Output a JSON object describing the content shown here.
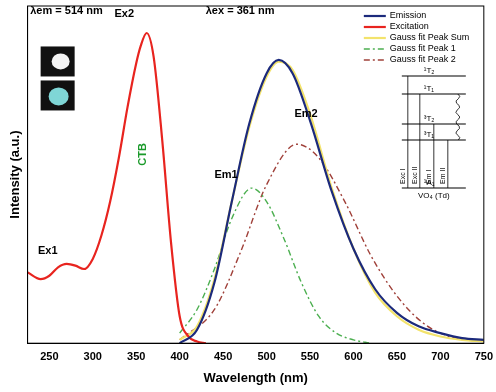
{
  "chart_data": {
    "type": "line",
    "x_label": "Wavelength (nm)",
    "y_label": "Intensity (a.u.)",
    "xlim": [
      225,
      750
    ],
    "xticks": [
      250,
      300,
      350,
      400,
      450,
      500,
      550,
      600,
      650,
      700,
      750
    ],
    "ylim": [
      0,
      1
    ],
    "tick_labels": "x",
    "grid": false,
    "legend": "upper right",
    "annotations": [
      "λem = 514 nm",
      "λex = 361 nm",
      "Ex1",
      "Ex2",
      "CTB",
      "Em1",
      "Em2"
    ],
    "inset": {
      "levels": [
        "¹T₂",
        "¹T₁",
        "³T₂",
        "³T₁",
        "¹A₁"
      ],
      "transitions": [
        "Exc I",
        "Exc II",
        "Em I",
        "Em II"
      ],
      "caption": "VO₄ (Td)"
    },
    "series": [
      {
        "name": "Emission",
        "color": "#1c2a7c",
        "line_style": "solid",
        "x": [
          400,
          420,
          440,
          460,
          480,
          500,
          514,
          530,
          550,
          575,
          600,
          625,
          650,
          675,
          700,
          725,
          750
        ],
        "values": [
          0.0,
          0.04,
          0.18,
          0.42,
          0.65,
          0.8,
          0.84,
          0.8,
          0.66,
          0.45,
          0.28,
          0.16,
          0.09,
          0.05,
          0.03,
          0.015,
          0.01
        ]
      },
      {
        "name": "Excitation",
        "color": "#e8241f",
        "line_style": "solid",
        "x": [
          225,
          240,
          250,
          260,
          270,
          280,
          290,
          300,
          310,
          320,
          330,
          340,
          350,
          355,
          362,
          370,
          380,
          390,
          400,
          410,
          420,
          430
        ],
        "values": [
          0.21,
          0.19,
          0.2,
          0.225,
          0.235,
          0.23,
          0.22,
          0.25,
          0.32,
          0.42,
          0.55,
          0.7,
          0.83,
          0.88,
          0.92,
          0.85,
          0.6,
          0.3,
          0.08,
          0.02,
          0.005,
          0
        ]
      },
      {
        "name": "Gauss fit Peak Sum",
        "color": "#f3e36c",
        "line_style": "solid",
        "x": [
          400,
          420,
          440,
          460,
          480,
          500,
          514,
          530,
          550,
          575,
          600,
          625,
          650,
          675,
          700,
          725,
          750
        ],
        "values": [
          0.01,
          0.05,
          0.19,
          0.42,
          0.64,
          0.79,
          0.835,
          0.81,
          0.68,
          0.46,
          0.28,
          0.15,
          0.08,
          0.04,
          0.02,
          0.01,
          0.005
        ]
      },
      {
        "name": "Gauss fit Peak 1",
        "color": "#4caf50",
        "line_style": "dashdot",
        "x": [
          400,
          420,
          440,
          460,
          483,
          500,
          520,
          540,
          560,
          580,
          600,
          620
        ],
        "values": [
          0.03,
          0.1,
          0.22,
          0.37,
          0.46,
          0.42,
          0.31,
          0.18,
          0.08,
          0.03,
          0.01,
          0
        ]
      },
      {
        "name": "Gauss fit Peak 2",
        "color": "#a0413a",
        "line_style": "dashdot",
        "x": [
          400,
          440,
          470,
          500,
          535,
          560,
          590,
          620,
          650,
          680,
          710,
          750
        ],
        "values": [
          0.01,
          0.1,
          0.27,
          0.47,
          0.59,
          0.55,
          0.42,
          0.26,
          0.14,
          0.06,
          0.02,
          0.005
        ]
      }
    ]
  }
}
